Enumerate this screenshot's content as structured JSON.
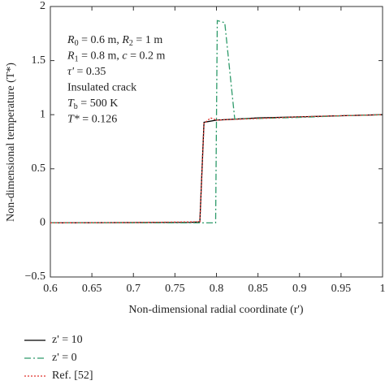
{
  "chart_data": {
    "type": "line",
    "xlabel": "Non-dimensional radial coordinate (r')",
    "ylabel": "Non-dimensional temperature (T*)",
    "xlim": [
      0.6,
      1
    ],
    "ylim": [
      -0.5,
      2
    ],
    "xticks": [
      0.6,
      0.65,
      0.7,
      0.75,
      0.8,
      0.85,
      0.9,
      0.95,
      1
    ],
    "yticks": [
      {
        "value": -0.5,
        "label": "−0.5"
      },
      0,
      0.5,
      1,
      1.5,
      2
    ],
    "annotations": [
      [
        {
          "i": "R"
        },
        {
          "sub": "0"
        },
        {
          "t": " = 0.6 m, "
        },
        {
          "i": "R"
        },
        {
          "sub": "2"
        },
        {
          "t": " = 1 m"
        }
      ],
      [
        {
          "i": "R"
        },
        {
          "sub": "1"
        },
        {
          "t": " = 0.8 m, "
        },
        {
          "i": "c"
        },
        {
          "t": " = 0.2 m"
        }
      ],
      [
        {
          "i": "τ'"
        },
        {
          "t": " = 0.35"
        }
      ],
      [
        {
          "t": "Insulated crack"
        }
      ],
      [
        {
          "i": "T"
        },
        {
          "sub": "b"
        },
        {
          "t": " = 500 K"
        }
      ],
      [
        {
          "i": "T*"
        },
        {
          "t": " = 0.126"
        }
      ]
    ],
    "series": [
      {
        "name": "z' = 10",
        "color": "#000000",
        "dash": "none",
        "x": [
          0.6,
          0.7,
          0.77,
          0.78,
          0.785,
          0.8,
          0.85,
          0.9,
          0.95,
          1.0
        ],
        "values": [
          0,
          0.003,
          0.005,
          0.01,
          0.93,
          0.95,
          0.97,
          0.98,
          0.99,
          1.0
        ]
      },
      {
        "name": "z' = 0",
        "color": "#2e9a6a",
        "dash": "8 3 2 3",
        "x": [
          0.6,
          0.7,
          0.79,
          0.799,
          0.801,
          0.81,
          0.822,
          0.85,
          0.9,
          0.95,
          1.0
        ],
        "values": [
          0,
          0,
          0,
          0,
          1.87,
          1.85,
          0.96,
          0.965,
          0.975,
          0.99,
          1.0
        ]
      },
      {
        "name": "Ref. [52]",
        "color": "#e0302a",
        "dash": "2 2",
        "x": [
          0.6,
          0.7,
          0.78,
          0.785,
          0.793,
          0.8,
          0.85,
          0.9,
          0.95,
          1.0
        ],
        "values": [
          0,
          0.003,
          0.01,
          0.92,
          0.97,
          0.95,
          0.965,
          0.98,
          0.99,
          1.0
        ]
      }
    ]
  }
}
